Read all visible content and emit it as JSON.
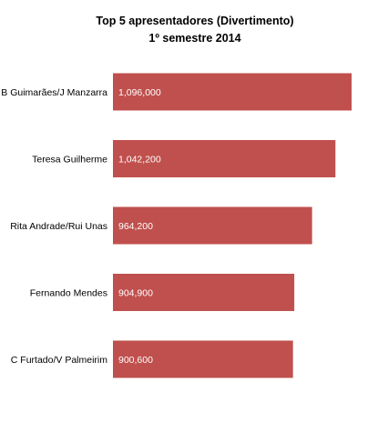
{
  "chart_data": {
    "type": "bar",
    "orientation": "horizontal",
    "title": "Top 5 apresentadores (Divertimento)",
    "subtitle": "1º semestre 2014",
    "categories": [
      "B Guimarães/J Manzarra",
      "Teresa Guilherme",
      "Rita Andrade/Rui Unas",
      "Fernando Mendes",
      "C Furtado/V Palmeirim"
    ],
    "values": [
      1096000,
      1042200,
      964200,
      904900,
      900600
    ],
    "data_labels": [
      "1,096,000",
      "1,042,200",
      "964,200",
      "904,900",
      "900,600"
    ],
    "bar_color": "#c0504d",
    "data_label_color": "#ffffff",
    "grid": false,
    "legend": "none",
    "xlim": [
      300000,
      1100000
    ]
  }
}
